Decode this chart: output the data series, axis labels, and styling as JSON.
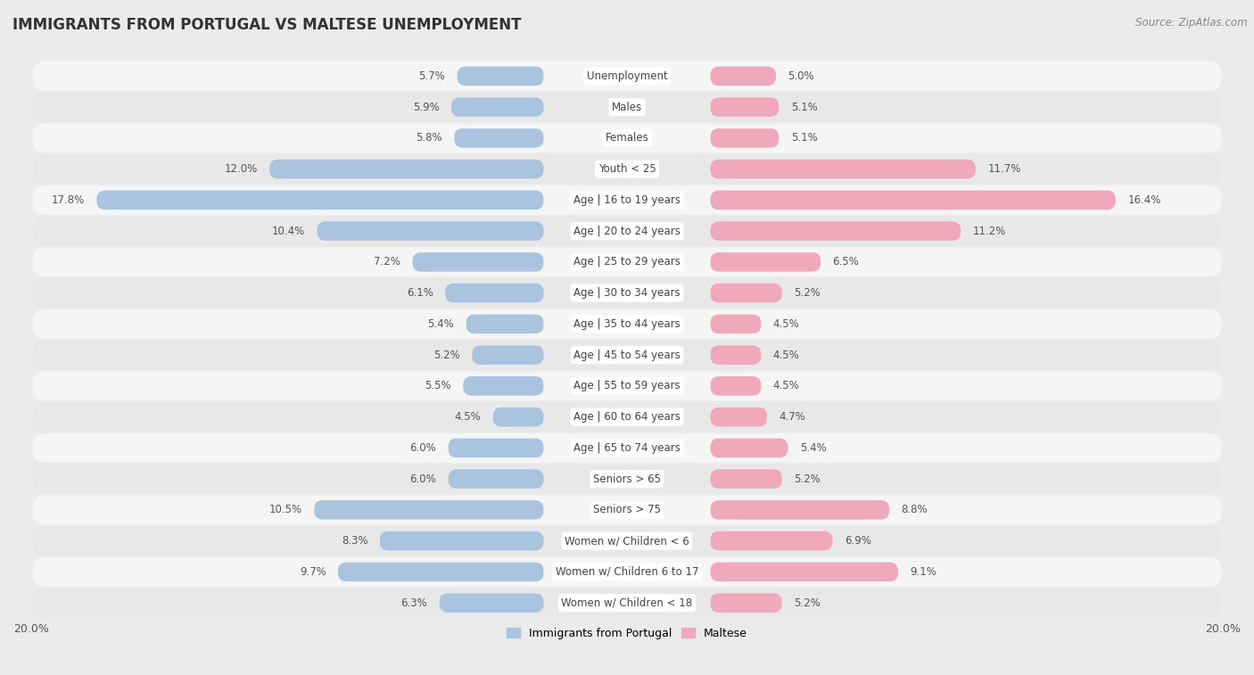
{
  "title": "IMMIGRANTS FROM PORTUGAL VS MALTESE UNEMPLOYMENT",
  "source": "Source: ZipAtlas.com",
  "categories": [
    "Unemployment",
    "Males",
    "Females",
    "Youth < 25",
    "Age | 16 to 19 years",
    "Age | 20 to 24 years",
    "Age | 25 to 29 years",
    "Age | 30 to 34 years",
    "Age | 35 to 44 years",
    "Age | 45 to 54 years",
    "Age | 55 to 59 years",
    "Age | 60 to 64 years",
    "Age | 65 to 74 years",
    "Seniors > 65",
    "Seniors > 75",
    "Women w/ Children < 6",
    "Women w/ Children 6 to 17",
    "Women w/ Children < 18"
  ],
  "portugal_values": [
    5.7,
    5.9,
    5.8,
    12.0,
    17.8,
    10.4,
    7.2,
    6.1,
    5.4,
    5.2,
    5.5,
    4.5,
    6.0,
    6.0,
    10.5,
    8.3,
    9.7,
    6.3
  ],
  "maltese_values": [
    5.0,
    5.1,
    5.1,
    11.7,
    16.4,
    11.2,
    6.5,
    5.2,
    4.5,
    4.5,
    4.5,
    4.7,
    5.4,
    5.2,
    8.8,
    6.9,
    9.1,
    5.2
  ],
  "portugal_color": "#aac4e0",
  "maltese_color": "#f0a8bc",
  "portugal_label": "Immigrants from Portugal",
  "maltese_label": "Maltese",
  "xlim": 20.0,
  "background_color": "#ebebeb",
  "row_even_color": "#f5f5f5",
  "row_odd_color": "#e8e8e8",
  "title_fontsize": 12,
  "source_fontsize": 8.5,
  "value_fontsize": 8.5,
  "label_fontsize": 8.5,
  "tick_fontsize": 9,
  "legend_fontsize": 9
}
